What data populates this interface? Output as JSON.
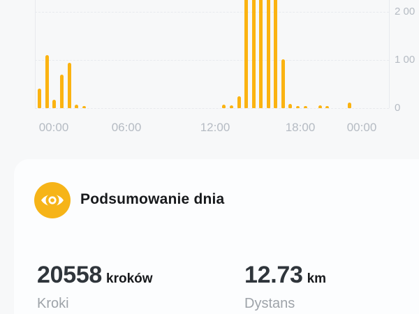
{
  "colors": {
    "page_bg": "#F7F8F9",
    "card_bg": "#FCFDFE",
    "bar": "#FBB311",
    "icon_bg": "#F6B418",
    "grid": "#E8EAEE",
    "axis_text": "#B5BBC3",
    "title_text": "#17191C",
    "value_text": "#2F353B",
    "unit_text": "#17191C",
    "label_text": "#9EA3A9"
  },
  "chart": {
    "y_ticks": [
      {
        "label": "2 00",
        "value": 2000
      },
      {
        "label": "1 00",
        "value": 1000
      },
      {
        "label": "0",
        "value": 0
      }
    ],
    "x_ticks": [
      "00:00",
      "06:00",
      "12:00",
      "18:00",
      "00:00"
    ]
  },
  "chart_data": {
    "type": "bar",
    "title": "",
    "x_unit": "time of day (30-minute slots)",
    "y_unit": "kroki (steps)",
    "y_tick_values": [
      0,
      1000,
      2000
    ],
    "y_tick_labels_display": [
      "0",
      "1 00",
      "2 00"
    ],
    "x_tick_labels": [
      "00:00",
      "06:00",
      "12:00",
      "18:00",
      "00:00"
    ],
    "ylim_visible": [
      0,
      2250
    ],
    "grid": "dashed horizontal lines",
    "legend": "none",
    "points": [
      {
        "time": "00:00",
        "steps": 410
      },
      {
        "time": "00:30",
        "steps": 1100
      },
      {
        "time": "01:00",
        "steps": 170
      },
      {
        "time": "01:30",
        "steps": 700
      },
      {
        "time": "02:00",
        "steps": 940
      },
      {
        "time": "02:30",
        "steps": 70
      },
      {
        "time": "03:00",
        "steps": 40
      },
      {
        "time": "12:30",
        "steps": 70
      },
      {
        "time": "13:00",
        "steps": 55
      },
      {
        "time": "13:30",
        "steps": 245
      },
      {
        "time": "14:00",
        "steps": 3000,
        "clipped_at_top": true
      },
      {
        "time": "14:30",
        "steps": 3000,
        "clipped_at_top": true
      },
      {
        "time": "15:00",
        "steps": 3000,
        "clipped_at_top": true
      },
      {
        "time": "15:30",
        "steps": 3000,
        "clipped_at_top": true
      },
      {
        "time": "16:00",
        "steps": 3000,
        "clipped_at_top": true
      },
      {
        "time": "16:30",
        "steps": 1015
      },
      {
        "time": "17:00",
        "steps": 85
      },
      {
        "time": "17:30",
        "steps": 45
      },
      {
        "time": "18:00",
        "steps": 45
      },
      {
        "time": "19:00",
        "steps": 55
      },
      {
        "time": "19:30",
        "steps": 45
      },
      {
        "time": "21:00",
        "steps": 115
      }
    ]
  },
  "summary": {
    "title": "Podsumowanie dnia",
    "icon": "eye-icon",
    "stats": [
      {
        "value": "20558",
        "unit": "kroków",
        "label": "Kroki"
      },
      {
        "value": "12.73",
        "unit": "km",
        "label": "Dystans"
      }
    ]
  }
}
